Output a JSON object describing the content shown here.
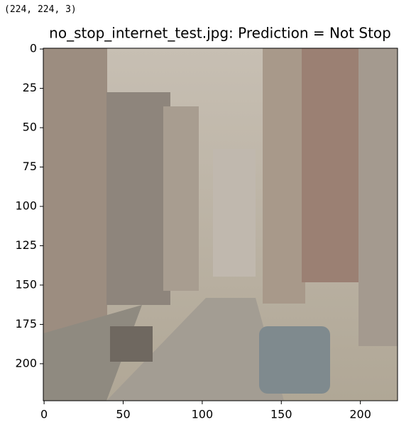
{
  "output_text": "(224, 224, 3)",
  "chart_data": {
    "type": "image",
    "title": "no_stop_internet_test.jpg: Prediction = Not Stop",
    "xlim": [
      -0.5,
      223.5
    ],
    "ylim": [
      223.5,
      -0.5
    ],
    "xticks": [
      0,
      50,
      100,
      150,
      200
    ],
    "yticks": [
      0,
      25,
      50,
      75,
      100,
      125,
      150,
      175,
      200
    ]
  }
}
